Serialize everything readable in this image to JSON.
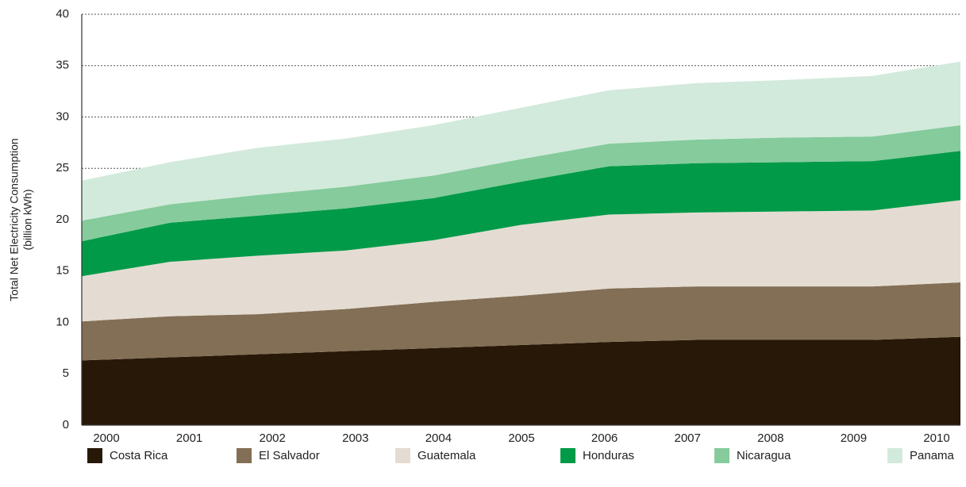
{
  "chart_data": {
    "type": "stacked_area",
    "ylabel": [
      "Total Net Electricity Consumption",
      "(billion kWh)"
    ],
    "categories": [
      "2000",
      "2001",
      "2002",
      "2003",
      "2004",
      "2005",
      "2006",
      "2007",
      "2008",
      "2009",
      "2010"
    ],
    "series": [
      {
        "name": "Costa Rica",
        "color": "#271808",
        "values": [
          6.3,
          6.6,
          6.9,
          7.2,
          7.5,
          7.8,
          8.1,
          8.3,
          8.3,
          8.3,
          8.6
        ]
      },
      {
        "name": "El Salvador",
        "color": "#836f55",
        "values": [
          3.8,
          4.0,
          3.9,
          4.1,
          4.5,
          4.8,
          5.2,
          5.2,
          5.2,
          5.2,
          5.3
        ]
      },
      {
        "name": "Guatemala",
        "color": "#e4dcd2",
        "values": [
          4.4,
          5.3,
          5.7,
          5.7,
          6.0,
          6.9,
          7.2,
          7.2,
          7.3,
          7.4,
          8.0
        ]
      },
      {
        "name": "Honduras",
        "color": "#009a48",
        "values": [
          3.4,
          3.8,
          3.9,
          4.1,
          4.1,
          4.2,
          4.7,
          4.8,
          4.8,
          4.8,
          4.8
        ]
      },
      {
        "name": "Nicaragua",
        "color": "#85cb9c",
        "values": [
          2.0,
          1.8,
          2.0,
          2.1,
          2.2,
          2.2,
          2.2,
          2.3,
          2.4,
          2.4,
          2.5
        ]
      },
      {
        "name": "Panama",
        "color": "#d2eadb",
        "values": [
          3.9,
          4.1,
          4.6,
          4.7,
          4.9,
          5.0,
          5.2,
          5.5,
          5.6,
          5.9,
          6.2
        ]
      }
    ],
    "ylim": [
      0,
      40
    ],
    "yticks": [
      0,
      5,
      10,
      15,
      20,
      25,
      30,
      35,
      40
    ],
    "grid": true
  }
}
